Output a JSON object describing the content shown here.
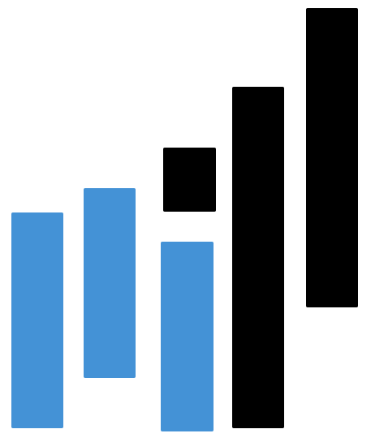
{
  "logo": {
    "name": "bar-blocks-logo",
    "colors": {
      "blue": "#4492D6",
      "black": "#000000"
    },
    "blocks": [
      {
        "name": "logo-block-blue-1",
        "color": "blue"
      },
      {
        "name": "logo-block-blue-2",
        "color": "blue"
      },
      {
        "name": "logo-block-black-small",
        "color": "black"
      },
      {
        "name": "logo-block-blue-3",
        "color": "blue"
      },
      {
        "name": "logo-block-black-1",
        "color": "black"
      },
      {
        "name": "logo-block-black-2",
        "color": "black"
      }
    ]
  }
}
